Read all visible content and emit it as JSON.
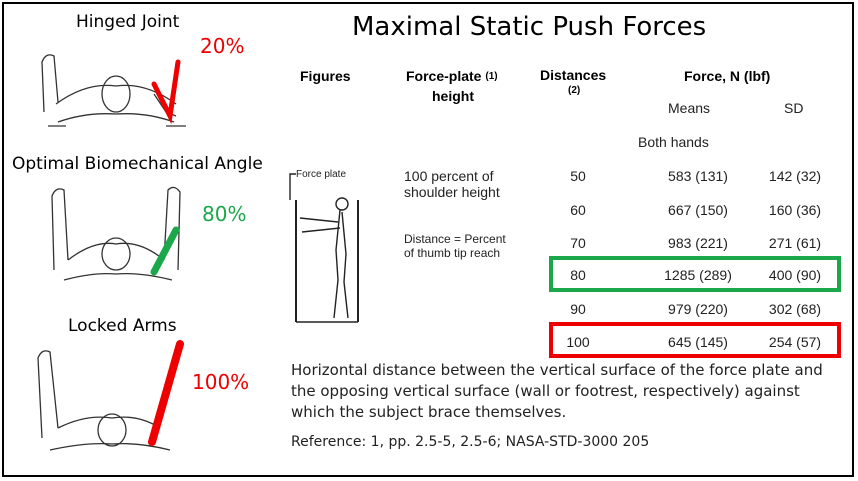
{
  "title": "Maximal Static Push Forces",
  "postures": [
    {
      "label": "Hinged Joint",
      "percent": "20%",
      "color": "#ee0000"
    },
    {
      "label": "Optimal Biomechanical  Angle",
      "percent": "80%",
      "color": "#1aa84a"
    },
    {
      "label": "Locked Arms",
      "percent": "100%",
      "color": "#ee0000"
    }
  ],
  "table": {
    "headers": {
      "figures": "Figures",
      "plate_line1": "Force-plate",
      "plate_note": "(1)",
      "plate_line2": "height",
      "distances": "Distances",
      "distances_note": "(2)",
      "force": "Force, N (lbf)",
      "means": "Means",
      "sd": "SD",
      "both_hands": "Both hands"
    },
    "figure_label": "Force plate",
    "plate_height": "100 percent of shoulder height",
    "distance_desc": "Distance = Percent of thumb tip reach",
    "rows": [
      {
        "distance": "50",
        "mean": "583 (131)",
        "sd": "142 (32)"
      },
      {
        "distance": "60",
        "mean": "667 (150)",
        "sd": "160 (36)"
      },
      {
        "distance": "70",
        "mean": "983 (221)",
        "sd": "271 (61)"
      },
      {
        "distance": "80",
        "mean": "1285 (289)",
        "sd": "400 (90)"
      },
      {
        "distance": "90",
        "mean": "979 (220)",
        "sd": "302 (68)"
      },
      {
        "distance": "100",
        "mean": "645 (145)",
        "sd": "254 (57)"
      }
    ],
    "highlight_colors": {
      "optimal": "#1aa84a",
      "locked": "#ee0000"
    }
  },
  "footnote": "Horizontal distance between the vertical surface of the force plate and the opposing vertical surface (wall or footrest, respectively) against which the subject brace themselves.",
  "reference": "Reference: 1, pp. 2.5-5, 2.5-6; NASA-STD-3000 205"
}
